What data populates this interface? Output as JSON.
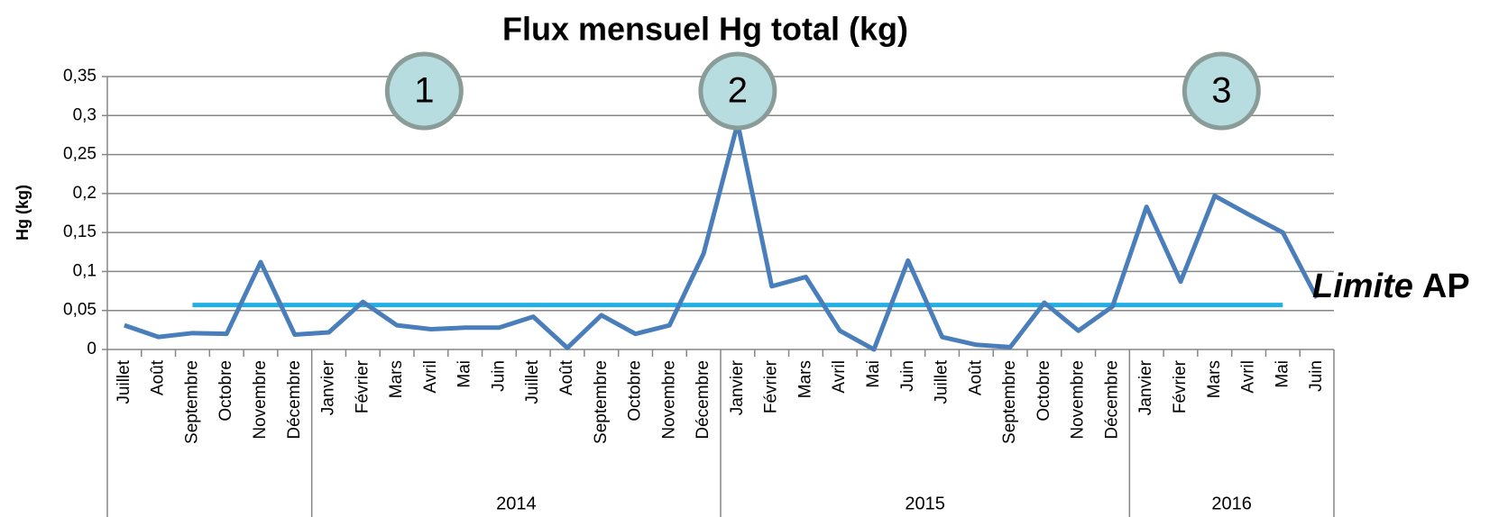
{
  "chart_data": {
    "type": "line",
    "title": "Flux mensuel Hg total (kg)",
    "y_label": "Hg (kg)",
    "categories": [
      "Juillet",
      "Août",
      "Septembre",
      "Octobre",
      "Novembre",
      "Décembre",
      "Janvier",
      "Février",
      "Mars",
      "Avril",
      "Mai",
      "Juin",
      "Juillet",
      "Août",
      "Septembre",
      "Octobre",
      "Novembre",
      "Décembre",
      "Janvier",
      "Février",
      "Mars",
      "Avril",
      "Mai",
      "Juin",
      "Juillet",
      "Août",
      "Septembre",
      "Octobre",
      "Novembre",
      "Décembre",
      "Janvier",
      "Février",
      "Mars",
      "Avril",
      "Mai",
      "Juin"
    ],
    "years": [
      null,
      null,
      null,
      null,
      null,
      null,
      "2014",
      "2014",
      "2014",
      "2014",
      "2014",
      "2014",
      "2014",
      "2014",
      "2014",
      "2014",
      "2014",
      "2014",
      "2015",
      "2015",
      "2015",
      "2015",
      "2015",
      "2015",
      "2015",
      "2015",
      "2015",
      "2015",
      "2015",
      "2015",
      "2016",
      "2016",
      "2016",
      "2016",
      "2016",
      "2016"
    ],
    "series": [
      {
        "color": "#4a7ebb",
        "values": [
          0.031,
          0.016,
          0.021,
          0.02,
          0.112,
          0.019,
          0.022,
          0.061,
          0.031,
          0.026,
          0.028,
          0.028,
          0.042,
          0.002,
          0.044,
          0.02,
          0.031,
          0.123,
          0.29,
          0.081,
          0.093,
          0.024,
          0.0,
          0.114,
          0.016,
          0.006,
          0.003,
          0.06,
          0.024,
          0.055,
          0.183,
          0.087,
          0.197,
          0.173,
          0.15,
          0.066
        ]
      },
      {
        "color": "#1fb0e6",
        "values": [
          null,
          null,
          0.057,
          0.057,
          0.057,
          0.057,
          0.057,
          0.057,
          0.057,
          0.057,
          0.057,
          0.057,
          0.057,
          0.057,
          0.057,
          0.057,
          0.057,
          0.057,
          0.057,
          0.057,
          0.057,
          0.057,
          0.057,
          0.057,
          0.057,
          0.057,
          0.057,
          0.057,
          0.057,
          0.057,
          0.057,
          0.057,
          0.057,
          0.057,
          0.057,
          null
        ]
      }
    ],
    "limit_label": {
      "italic": "Limite",
      "bold": "AP"
    },
    "annotations": [
      "1",
      "2",
      "3"
    ],
    "ylim": [
      0,
      0.35
    ],
    "yticks": [
      0,
      {
        "value": 0.05,
        "label": "0,05"
      },
      {
        "value": 0.1,
        "label": "0,1"
      },
      {
        "value": 0.15,
        "label": "0,15"
      },
      {
        "value": 0.2,
        "label": "0,2"
      },
      {
        "value": 0.25,
        "label": "0,25"
      },
      {
        "value": 0.3,
        "label": "0,3"
      },
      {
        "value": 0.35,
        "label": "0,35"
      }
    ],
    "grid": true
  }
}
